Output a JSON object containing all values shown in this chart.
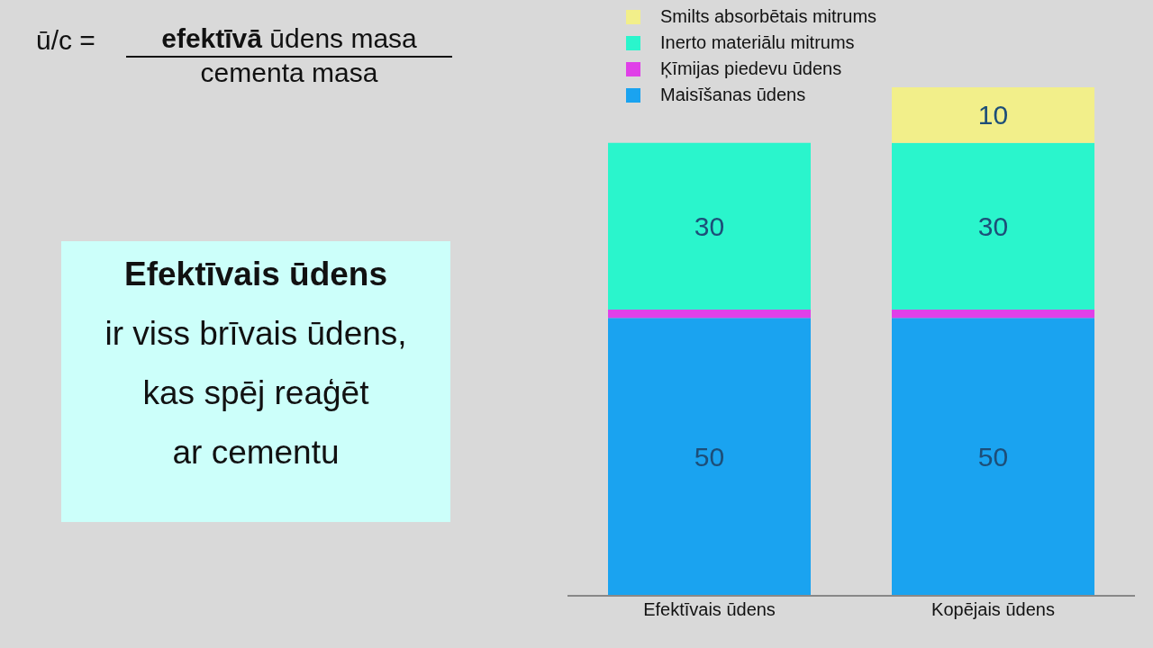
{
  "chart_data": {
    "type": "bar",
    "stacked": true,
    "categories": [
      "Efektīvais ūdens",
      "Kopējais ūdens"
    ],
    "series": [
      {
        "name": "Maisīšanas ūdens",
        "color": "#1aa3f0",
        "values": [
          50,
          50
        ],
        "value_labels": [
          "50",
          "50"
        ]
      },
      {
        "name": "Ķīmijas piedevu ūdens",
        "color": "#e040e8",
        "values": [
          1.5,
          1.5
        ],
        "value_labels": [
          null,
          null
        ]
      },
      {
        "name": "Inerto materiālu mitrums",
        "color": "#2af5cc",
        "values": [
          30,
          30
        ],
        "value_labels": [
          "30",
          "30"
        ]
      },
      {
        "name": "Smilts absorbētais mitrums",
        "color": "#f2ef8a",
        "values": [
          null,
          10
        ],
        "value_labels": [
          null,
          "10"
        ]
      }
    ],
    "legend": "top",
    "grid": false,
    "annotations": [
      "ū/c =",
      "efektīvā",
      "ūdens masa",
      "cementa masa",
      "Efektīvais ūdens",
      "ir viss brīvais ūdens,",
      "kas spēj reaģēt",
      "ar cementu"
    ]
  }
}
